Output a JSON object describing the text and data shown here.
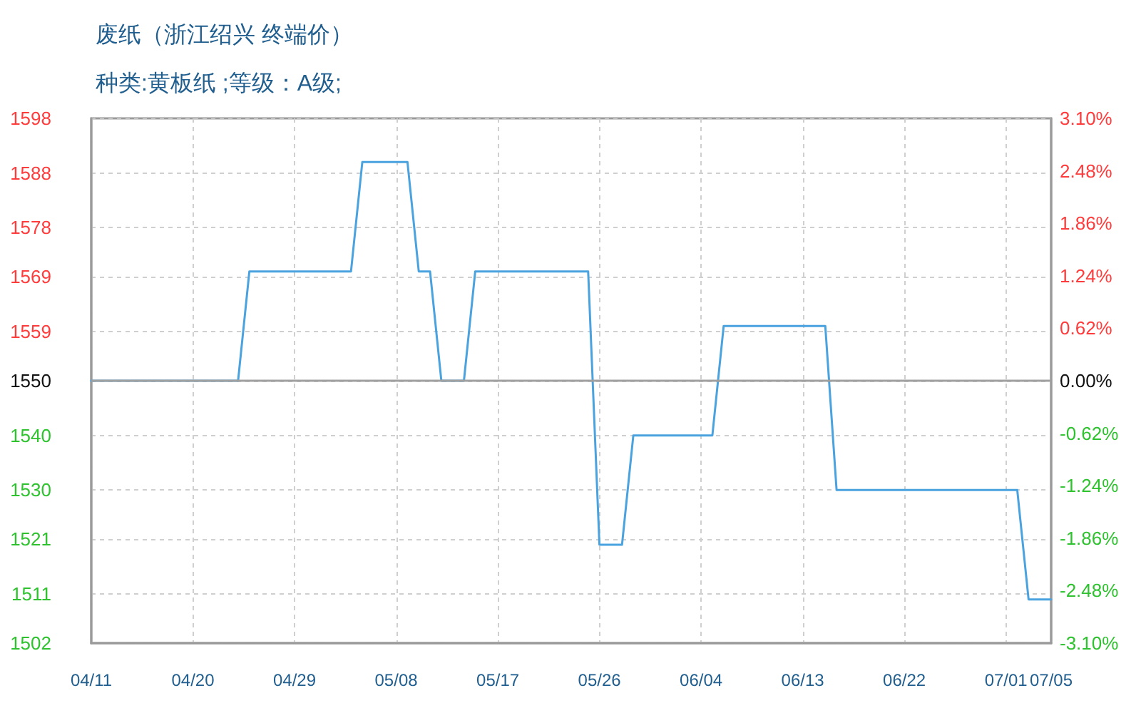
{
  "chart_data": {
    "type": "line",
    "title": "废纸（浙江绍兴 终端价）",
    "subtitle": "种类:黄板纸 ;等级：A级;",
    "x": [
      "--04-11",
      "--04-24",
      "--04-25",
      "--05-04",
      "--05-05",
      "--05-09",
      "--05-10",
      "--05-11",
      "--05-12",
      "--05-14",
      "--05-15",
      "--05-25",
      "--05-26",
      "--05-28",
      "--05-29",
      "--06-05",
      "--06-06",
      "--06-15",
      "--06-16",
      "--07-02",
      "--07-03",
      "--07-05"
    ],
    "series": [
      {
        "color": "#4aa3df",
        "values": [
          1550,
          1550,
          1570,
          1570,
          1590,
          1590,
          1570,
          1570,
          1550,
          1550,
          1570,
          1570,
          1520,
          1520,
          1540,
          1540,
          1560,
          1560,
          1530,
          1530,
          1510,
          1510
        ]
      }
    ],
    "xlim": [
      "--04-11",
      "--07-05"
    ],
    "xticks": [
      {
        "value": "--04-11",
        "label": "04/11"
      },
      {
        "value": "--04-20",
        "label": "04/20"
      },
      {
        "value": "--04-29",
        "label": "04/29"
      },
      {
        "value": "--05-08",
        "label": "05/08"
      },
      {
        "value": "--05-17",
        "label": "05/17"
      },
      {
        "value": "--05-26",
        "label": "05/26"
      },
      {
        "value": "--06-04",
        "label": "06/04"
      },
      {
        "value": "--06-13",
        "label": "06/13"
      },
      {
        "value": "--06-22",
        "label": "06/22"
      },
      {
        "value": "--07-01",
        "label": "07/01"
      },
      {
        "value": "--07-05",
        "label": "07/05"
      }
    ],
    "ylim": [
      1502,
      1598
    ],
    "yticks": [
      1502,
      1511,
      1521,
      1530,
      1540,
      1550,
      1559,
      1569,
      1578,
      1588,
      1598
    ],
    "y2lim": [
      -3.1,
      3.1
    ],
    "y2ticks": [
      {
        "value": -3.1,
        "label": "-3.10%"
      },
      {
        "value": -2.48,
        "label": "-2.48%"
      },
      {
        "value": -1.86,
        "label": "-1.86%"
      },
      {
        "value": -1.24,
        "label": "-1.24%"
      },
      {
        "value": -0.62,
        "label": "-0.62%"
      },
      {
        "value": 0,
        "label": "0.00%"
      },
      {
        "value": 0.62,
        "label": "0.62%"
      },
      {
        "value": 1.24,
        "label": "1.24%"
      },
      {
        "value": 1.86,
        "label": "1.86%"
      },
      {
        "value": 2.48,
        "label": "2.48%"
      },
      {
        "value": 3.1,
        "label": "3.10%"
      }
    ],
    "ref_lines": [
      {
        "axis": "y",
        "value": 1550,
        "color": "#a0a0a0",
        "line_style": "solid"
      }
    ],
    "grid": true,
    "marker": "none",
    "line_style": "solid"
  }
}
